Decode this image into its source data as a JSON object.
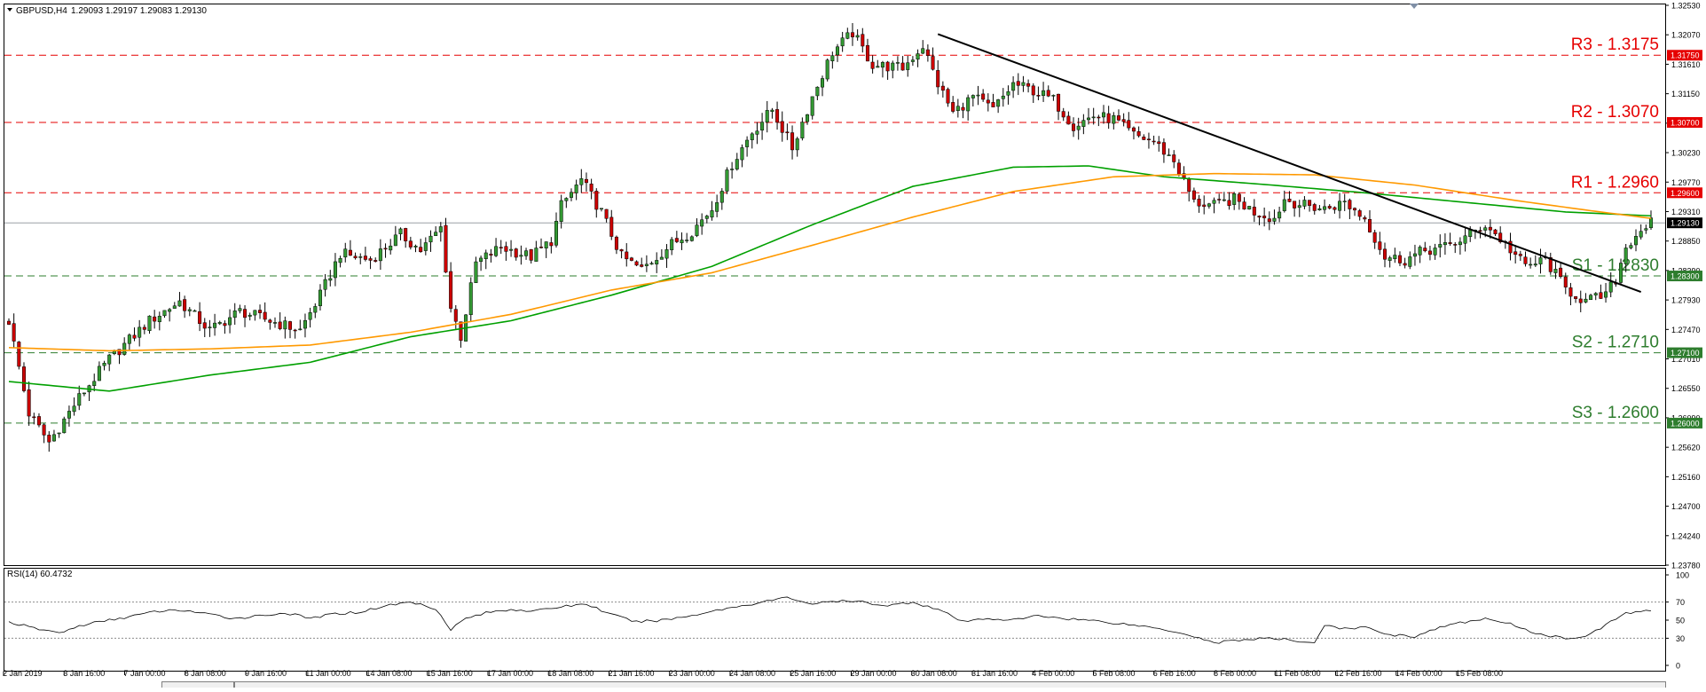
{
  "chart_data": [
    {
      "type": "candlestick",
      "title": "GBPUSD,H4",
      "ohlc_header": "1.29093 1.29197 1.29083 1.29130",
      "ylim": [
        1.2378,
        1.3253
      ],
      "y_ticks": [
        "1.32530",
        "1.32070",
        "1.31610",
        "1.31150",
        "1.30700",
        "1.30230",
        "1.29770",
        "1.29310",
        "1.28850",
        "1.28390",
        "1.27930",
        "1.27470",
        "1.27010",
        "1.26550",
        "1.26090",
        "1.25620",
        "1.25160",
        "1.24700",
        "1.24240",
        "1.23780"
      ],
      "x_ticks": [
        "2 Jan 2019",
        "3 Jan 16:00",
        "7 Jan 00:00",
        "8 Jan 08:00",
        "9 Jan 16:00",
        "11 Jan 00:00",
        "14 Jan 08:00",
        "15 Jan 16:00",
        "17 Jan 00:00",
        "18 Jan 08:00",
        "21 Jan 16:00",
        "23 Jan 00:00",
        "24 Jan 08:00",
        "25 Jan 16:00",
        "29 Jan 00:00",
        "30 Jan 08:00",
        "31 Jan 16:00",
        "4 Feb 00:00",
        "5 Feb 08:00",
        "6 Feb 16:00",
        "8 Feb 00:00",
        "11 Feb 08:00",
        "12 Feb 16:00",
        "14 Feb 00:00",
        "15 Feb 08:00"
      ],
      "close_path": [
        [
          0,
          1.276
        ],
        [
          4,
          1.2615
        ],
        [
          8,
          1.257
        ],
        [
          14,
          1.264
        ],
        [
          20,
          1.27
        ],
        [
          28,
          1.276
        ],
        [
          34,
          1.279
        ],
        [
          40,
          1.2745
        ],
        [
          46,
          1.2775
        ],
        [
          52,
          1.276
        ],
        [
          58,
          1.2745
        ],
        [
          62,
          1.28
        ],
        [
          66,
          1.2865
        ],
        [
          72,
          1.2855
        ],
        [
          78,
          1.2895
        ],
        [
          82,
          1.287
        ],
        [
          86,
          1.2905
        ],
        [
          88,
          1.278
        ],
        [
          90,
          1.2735
        ],
        [
          93,
          1.285
        ],
        [
          98,
          1.2875
        ],
        [
          104,
          1.286
        ],
        [
          108,
          1.2885
        ],
        [
          110,
          1.294
        ],
        [
          114,
          1.298
        ],
        [
          118,
          1.293
        ],
        [
          122,
          1.286
        ],
        [
          126,
          1.284
        ],
        [
          132,
          1.288
        ],
        [
          136,
          1.29
        ],
        [
          140,
          1.2935
        ],
        [
          144,
          1.3005
        ],
        [
          148,
          1.3055
        ],
        [
          152,
          1.309
        ],
        [
          156,
          1.303
        ],
        [
          160,
          1.311
        ],
        [
          164,
          1.318
        ],
        [
          168,
          1.321
        ],
        [
          172,
          1.316
        ],
        [
          178,
          1.3155
        ],
        [
          182,
          1.319
        ],
        [
          185,
          1.313
        ],
        [
          188,
          1.3085
        ],
        [
          192,
          1.311
        ],
        [
          196,
          1.309
        ],
        [
          200,
          1.313
        ],
        [
          204,
          1.312
        ],
        [
          208,
          1.3105
        ],
        [
          212,
          1.3065
        ],
        [
          216,
          1.308
        ],
        [
          220,
          1.3075
        ],
        [
          224,
          1.305
        ],
        [
          228,
          1.304
        ],
        [
          232,
          1.301
        ],
        [
          236,
          1.2945
        ],
        [
          240,
          1.294
        ],
        [
          244,
          1.295
        ],
        [
          248,
          1.293
        ],
        [
          252,
          1.292
        ],
        [
          254,
          1.295
        ],
        [
          258,
          1.294
        ],
        [
          262,
          1.2935
        ],
        [
          266,
          1.2945
        ],
        [
          270,
          1.292
        ],
        [
          274,
          1.286
        ],
        [
          278,
          1.2855
        ],
        [
          282,
          1.287
        ],
        [
          286,
          1.2875
        ],
        [
          290,
          1.289
        ],
        [
          294,
          1.291
        ],
        [
          298,
          1.288
        ],
        [
          302,
          1.2845
        ],
        [
          306,
          1.2855
        ],
        [
          310,
          1.281
        ],
        [
          314,
          1.279
        ],
        [
          318,
          1.28
        ],
        [
          320,
          1.2825
        ],
        [
          322,
          1.2875
        ],
        [
          324,
          1.2895
        ],
        [
          326,
          1.2909
        ],
        [
          327,
          1.2913
        ]
      ],
      "ma_fast": [
        [
          0,
          1.2718
        ],
        [
          20,
          1.2713
        ],
        [
          40,
          1.2716
        ],
        [
          60,
          1.2722
        ],
        [
          80,
          1.2742
        ],
        [
          100,
          1.277
        ],
        [
          120,
          1.2808
        ],
        [
          140,
          1.2835
        ],
        [
          160,
          1.2878
        ],
        [
          180,
          1.2922
        ],
        [
          200,
          1.2962
        ],
        [
          220,
          1.2985
        ],
        [
          240,
          1.299
        ],
        [
          260,
          1.2988
        ],
        [
          280,
          1.2972
        ],
        [
          300,
          1.2948
        ],
        [
          315,
          1.2932
        ],
        [
          327,
          1.292
        ]
      ],
      "ma_slow": [
        [
          0,
          1.2665
        ],
        [
          20,
          1.265
        ],
        [
          40,
          1.2675
        ],
        [
          60,
          1.2695
        ],
        [
          80,
          1.2735
        ],
        [
          100,
          1.276
        ],
        [
          120,
          1.28
        ],
        [
          140,
          1.2845
        ],
        [
          160,
          1.291
        ],
        [
          180,
          1.297
        ],
        [
          200,
          1.3
        ],
        [
          215,
          1.3002
        ],
        [
          230,
          1.2985
        ],
        [
          250,
          1.2973
        ],
        [
          270,
          1.296
        ],
        [
          290,
          1.2945
        ],
        [
          310,
          1.293
        ],
        [
          327,
          1.2924
        ]
      ],
      "trendline": [
        [
          185,
          1.3208
        ],
        [
          325,
          1.2805
        ]
      ],
      "candle_count": 328,
      "levels": [
        {
          "label": "R3 - 1.3175",
          "value": 1.3175,
          "tag": "1.31750",
          "color": "#e60000",
          "kind": "resistance"
        },
        {
          "label": "R2 - 1.3070",
          "value": 1.307,
          "tag": "1.30700",
          "color": "#e60000",
          "kind": "resistance"
        },
        {
          "label": "R1 - 1.2960",
          "value": 1.296,
          "tag": "1.29600",
          "color": "#e60000",
          "kind": "resistance"
        },
        {
          "label": "S1 - 1.2830",
          "value": 1.283,
          "tag": "1.28300",
          "color": "#2e7d2e",
          "kind": "support"
        },
        {
          "label": "S2 - 1.2710",
          "value": 1.271,
          "tag": "1.27100",
          "color": "#2e7d2e",
          "kind": "support"
        },
        {
          "label": "S3 - 1.2600",
          "value": 1.26,
          "tag": "1.26000",
          "color": "#2e7d2e",
          "kind": "support"
        }
      ],
      "current_price": {
        "value": 1.2913,
        "tag": "1.29130"
      },
      "colors": {
        "bull": "#339933",
        "bear": "#cc0000",
        "wick": "#000000",
        "ma_fast": "#ff9900",
        "ma_slow": "#00a000",
        "trend": "#000000",
        "current": "#9aa0a6"
      }
    },
    {
      "type": "line",
      "title": "RSI(14) 60.4732",
      "ylim": [
        0,
        100
      ],
      "y_ticks": [
        "100",
        "70",
        "50",
        "30",
        "0"
      ],
      "reference_lines": [
        70,
        30
      ],
      "values": [
        [
          0,
          48
        ],
        [
          5,
          41
        ],
        [
          10,
          36
        ],
        [
          15,
          45
        ],
        [
          20,
          50
        ],
        [
          25,
          55
        ],
        [
          30,
          60
        ],
        [
          35,
          61
        ],
        [
          40,
          56
        ],
        [
          45,
          52
        ],
        [
          50,
          55
        ],
        [
          55,
          58
        ],
        [
          60,
          52
        ],
        [
          65,
          57
        ],
        [
          70,
          59
        ],
        [
          75,
          66
        ],
        [
          80,
          70
        ],
        [
          85,
          63
        ],
        [
          88,
          40
        ],
        [
          91,
          52
        ],
        [
          95,
          58
        ],
        [
          100,
          62
        ],
        [
          105,
          60
        ],
        [
          110,
          65
        ],
        [
          115,
          68
        ],
        [
          120,
          56
        ],
        [
          125,
          48
        ],
        [
          130,
          50
        ],
        [
          135,
          54
        ],
        [
          140,
          60
        ],
        [
          145,
          65
        ],
        [
          150,
          70
        ],
        [
          155,
          75
        ],
        [
          160,
          68
        ],
        [
          165,
          71
        ],
        [
          170,
          70
        ],
        [
          175,
          66
        ],
        [
          180,
          70
        ],
        [
          185,
          62
        ],
        [
          190,
          48
        ],
        [
          195,
          52
        ],
        [
          200,
          50
        ],
        [
          205,
          55
        ],
        [
          210,
          52
        ],
        [
          215,
          50
        ],
        [
          220,
          47
        ],
        [
          225,
          44
        ],
        [
          230,
          40
        ],
        [
          235,
          34
        ],
        [
          240,
          25
        ],
        [
          245,
          28
        ],
        [
          250,
          30
        ],
        [
          255,
          28
        ],
        [
          260,
          25
        ],
        [
          262,
          45
        ],
        [
          265,
          40
        ],
        [
          270,
          42
        ],
        [
          275,
          34
        ],
        [
          280,
          32
        ],
        [
          285,
          42
        ],
        [
          290,
          48
        ],
        [
          295,
          52
        ],
        [
          300,
          44
        ],
        [
          305,
          34
        ],
        [
          310,
          30
        ],
        [
          315,
          34
        ],
        [
          318,
          45
        ],
        [
          322,
          58
        ],
        [
          327,
          60
        ]
      ],
      "colors": {
        "line": "#000000"
      }
    }
  ]
}
